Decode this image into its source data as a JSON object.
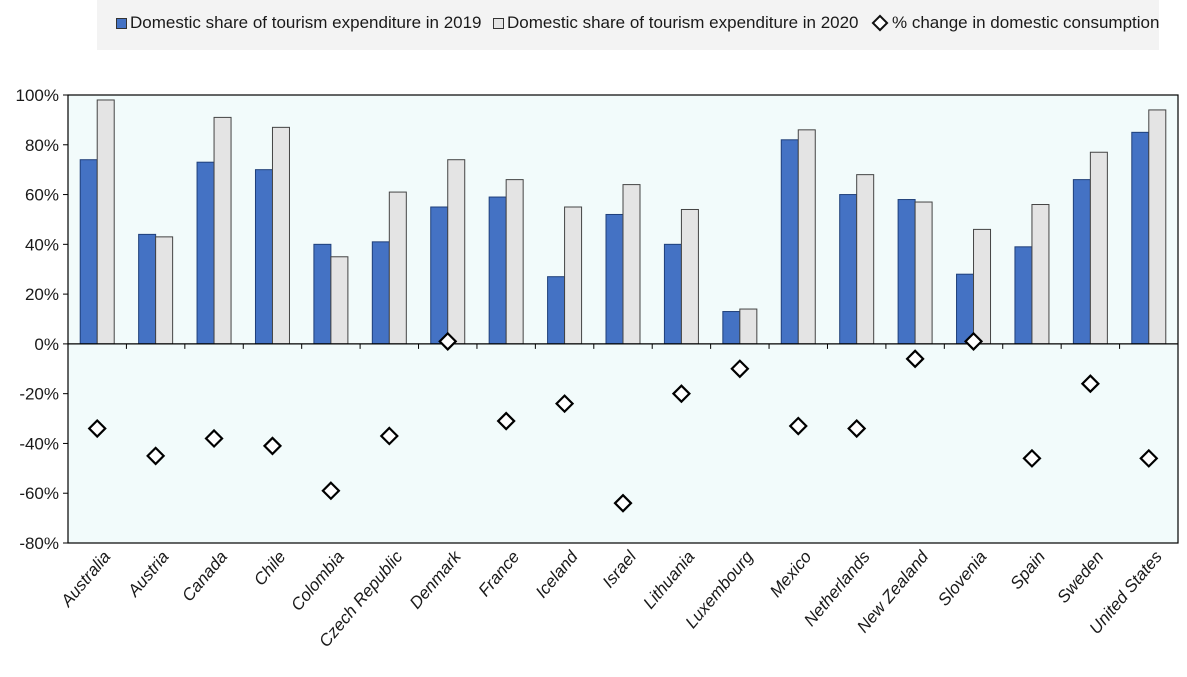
{
  "chart_data": {
    "type": "bar",
    "categories": [
      "Australia",
      "Austria",
      "Canada",
      "Chile",
      "Colombia",
      "Czech Republic",
      "Denmark",
      "France",
      "Iceland",
      "Israel",
      "Lithuania",
      "Luxembourg",
      "Mexico",
      "Netherlands",
      "New Zealand",
      "Slovenia",
      "Spain",
      "Sweden",
      "United States"
    ],
    "series": [
      {
        "name": "Domestic share of tourism expenditure in 2019",
        "kind": "bar",
        "color": "#4472c4",
        "values": [
          74,
          44,
          73,
          70,
          40,
          41,
          55,
          59,
          27,
          52,
          40,
          13,
          82,
          60,
          58,
          28,
          39,
          66,
          85
        ]
      },
      {
        "name": "Domestic share of tourism expenditure in 2020",
        "kind": "bar",
        "color": "#e4e4e4",
        "values": [
          98,
          43,
          91,
          87,
          35,
          61,
          74,
          66,
          55,
          64,
          54,
          14,
          86,
          68,
          57,
          46,
          56,
          77,
          94
        ]
      },
      {
        "name": "% change in domestic consumption",
        "kind": "marker",
        "marker": "diamond",
        "values": [
          -34,
          -45,
          -38,
          -41,
          -59,
          -37,
          1,
          -31,
          -24,
          -64,
          -20,
          -10,
          -33,
          -34,
          -6,
          1,
          -46,
          -16,
          -46
        ]
      }
    ],
    "yticks": [
      "100%",
      "80%",
      "60%",
      "40%",
      "20%",
      "0%",
      "-20%",
      "-40%",
      "-60%",
      "-80%"
    ],
    "ylim": [
      -80,
      100
    ],
    "title": "",
    "xlabel": "",
    "ylabel": "",
    "legend_position": "top",
    "plot_background": "#f2fbfb"
  }
}
